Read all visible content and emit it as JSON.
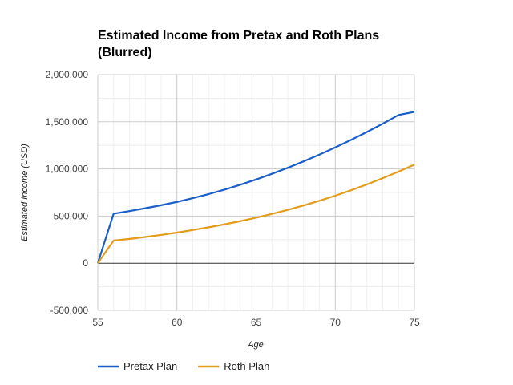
{
  "chart_data": {
    "type": "line",
    "title_lines": [
      "Estimated Income from Pretax and Roth Plans",
      "(Blurred)"
    ],
    "xlabel": "Age",
    "ylabel": "Estimated Income (USD)",
    "xlim": [
      55,
      75
    ],
    "ylim": [
      -500000,
      2000000
    ],
    "x_ticks": [
      55,
      60,
      65,
      70,
      75
    ],
    "y_ticks": [
      -500000,
      0,
      500000,
      1000000,
      1500000,
      2000000
    ],
    "x_tick_labels": [
      "55",
      "60",
      "65",
      "70",
      "75"
    ],
    "y_tick_labels": [
      "-500,000",
      "0",
      "500,000",
      "1,000,000",
      "1,500,000",
      "2,000,000"
    ],
    "grid": true,
    "legend_position": "bottom",
    "x": [
      55,
      56,
      57,
      58,
      59,
      60,
      61,
      62,
      63,
      64,
      65,
      66,
      67,
      68,
      69,
      70,
      71,
      72,
      73,
      74,
      75
    ],
    "series": [
      {
        "name": "Pretax Plan",
        "color": "#1a5fc8",
        "values": [
          0,
          525000,
          553000,
          583000,
          615000,
          650000,
          690000,
          733000,
          780000,
          832000,
          888000,
          948000,
          1012000,
          1080000,
          1152000,
          1228000,
          1308000,
          1392000,
          1480000,
          1572000,
          1605000
        ]
      },
      {
        "name": "Roth Plan",
        "color": "#e39b1a",
        "values": [
          0,
          240000,
          258000,
          278000,
          300000,
          325000,
          352000,
          381000,
          412000,
          446000,
          483000,
          523000,
          566000,
          612000,
          662000,
          716000,
          774000,
          836000,
          902000,
          972000,
          1045000
        ]
      }
    ]
  }
}
